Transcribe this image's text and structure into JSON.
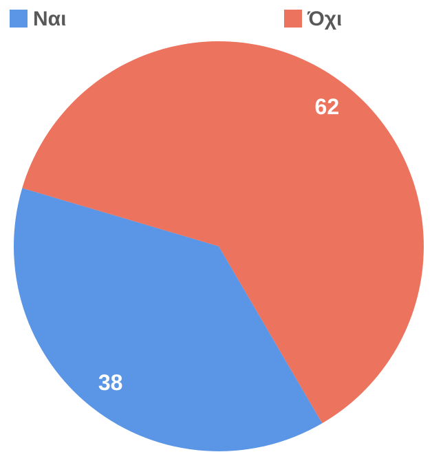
{
  "chart_data": {
    "type": "pie",
    "categories": [
      "Ναι",
      "Όχι"
    ],
    "values": [
      38,
      62
    ],
    "colors": [
      "#5b95e5",
      "#ec735d"
    ],
    "legend": "top"
  }
}
